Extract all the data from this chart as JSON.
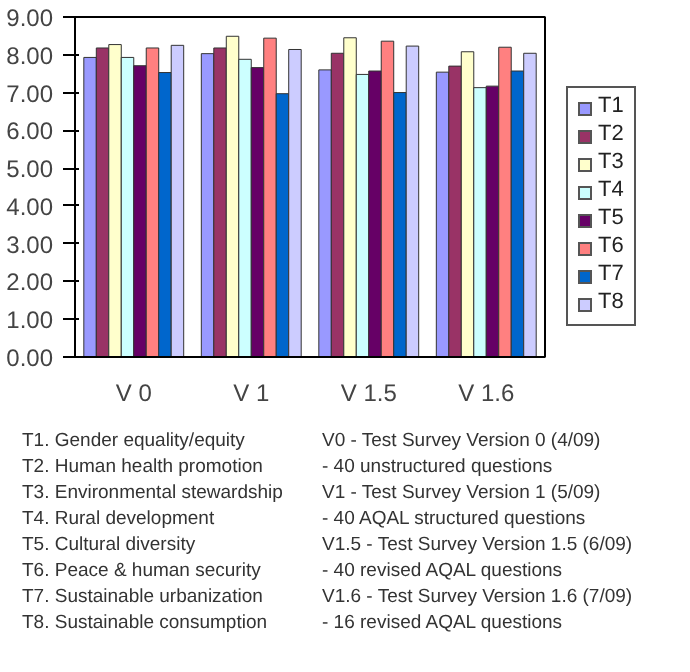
{
  "chart_data": {
    "type": "bar",
    "categories": [
      "V 0",
      "V 1",
      "V 1.5",
      "V 1.6"
    ],
    "series": [
      {
        "name": "T1",
        "color": "#9999ff",
        "values": [
          7.93,
          8.03,
          7.6,
          7.54
        ]
      },
      {
        "name": "T2",
        "color": "#993366",
        "values": [
          8.18,
          8.18,
          8.04,
          7.7
        ]
      },
      {
        "name": "T3",
        "color": "#ffffcc",
        "values": [
          8.27,
          8.49,
          8.45,
          8.08
        ]
      },
      {
        "name": "T4",
        "color": "#ccffff",
        "values": [
          7.93,
          7.88,
          7.48,
          7.13
        ]
      },
      {
        "name": "T5",
        "color": "#660066",
        "values": [
          7.71,
          7.66,
          7.57,
          7.17
        ]
      },
      {
        "name": "T6",
        "color": "#ff8080",
        "values": [
          8.18,
          8.44,
          8.36,
          8.2
        ]
      },
      {
        "name": "T7",
        "color": "#0066cc",
        "values": [
          7.53,
          6.97,
          7.0,
          7.57
        ]
      },
      {
        "name": "T8",
        "color": "#ccccff",
        "values": [
          8.25,
          8.14,
          8.23,
          8.04
        ]
      }
    ],
    "ylim": [
      0,
      9
    ],
    "yticks": [
      {
        "value": 0,
        "label": "0.00"
      },
      {
        "value": 1,
        "label": "1.00"
      },
      {
        "value": 2,
        "label": "2.00"
      },
      {
        "value": 3,
        "label": "3.00"
      },
      {
        "value": 4,
        "label": "4.00"
      },
      {
        "value": 5,
        "label": "5.00"
      },
      {
        "value": 6,
        "label": "6.00"
      },
      {
        "value": 7,
        "label": "7.00"
      },
      {
        "value": 8,
        "label": "8.00"
      },
      {
        "value": 9,
        "label": "9.00"
      }
    ],
    "grid": false,
    "legend": "right",
    "annotations": [
      "T1. Gender equality/equity",
      "T2. Human health promotion",
      "T3. Environmental stewardship",
      "T4. Rural development",
      "T5. Cultural diversity",
      "T6. Peace & human security",
      "T7. Sustainable urbanization",
      "T8. Sustainable consumption",
      "V0 - Test Survey Version 0 (4/09)",
      "- 40 unstructured questions",
      "V1 - Test Survey Version 1 (5/09)",
      "- 40 AQAL structured questions",
      "V1.5 - Test Survey Version 1.5 (6/09)",
      "- 40 revised AQAL questions",
      "V1.6 - Test Survey Version 1.6 (7/09)",
      "- 16 revised AQAL questions"
    ]
  }
}
